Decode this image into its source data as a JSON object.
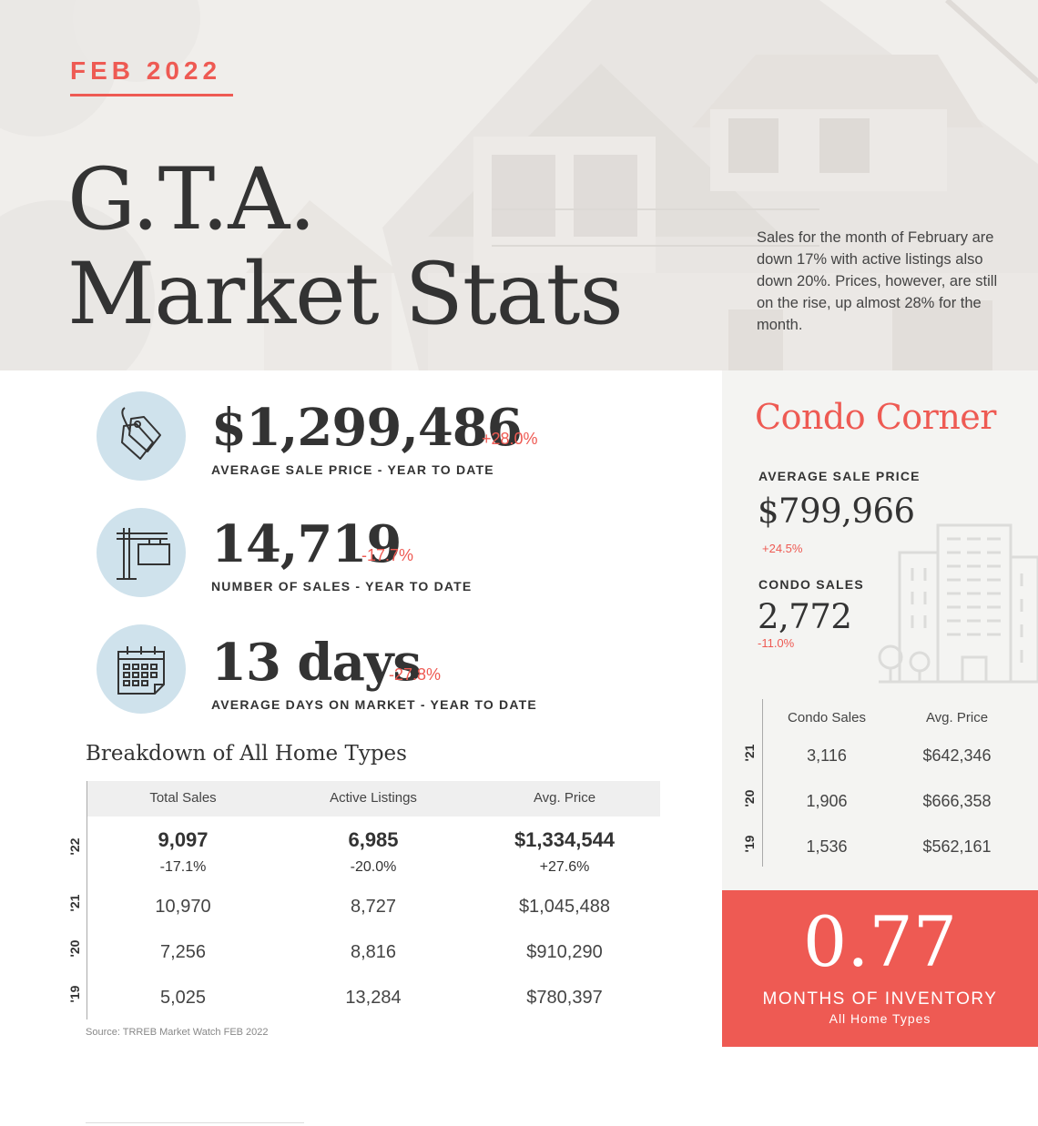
{
  "header": {
    "date": "FEB 2022",
    "title_line1": "G.T.A.",
    "title_line2": "Market Stats",
    "intro": "Sales for the month of February are down 17% with active listings also down 20%.  Prices, however, are still on the rise, up almost 28% for the month."
  },
  "stats": [
    {
      "icon": "price-tag-icon",
      "value": "$1,299,486",
      "change": "+28.0%",
      "label": "AVERAGE SALE PRICE - YEAR TO DATE"
    },
    {
      "icon": "for-sale-sign-icon",
      "value": "14,719",
      "change": "-17.7%",
      "label": "NUMBER OF SALES - YEAR TO DATE"
    },
    {
      "icon": "calendar-icon",
      "value": "13 days",
      "change": "-27.8%",
      "label": "AVERAGE DAYS ON MARKET - YEAR TO DATE"
    }
  ],
  "breakdown": {
    "title": "Breakdown of All Home Types",
    "columns": [
      "Total Sales",
      "Active Listings",
      "Avg. Price"
    ],
    "rows": [
      {
        "year": "'22",
        "total_sales": "9,097",
        "total_sales_change": "-17.1%",
        "active_listings": "6,985",
        "active_listings_change": "-20.0%",
        "avg_price": "$1,334,544",
        "avg_price_change": "+27.6%"
      },
      {
        "year": "'21",
        "total_sales": "10,970",
        "active_listings": "8,727",
        "avg_price": "$1,045,488"
      },
      {
        "year": "'20",
        "total_sales": "7,256",
        "active_listings": "8,816",
        "avg_price": "$910,290"
      },
      {
        "year": "'19",
        "total_sales": "5,025",
        "active_listings": "13,284",
        "avg_price": "$780,397"
      }
    ],
    "source": "Source: TRREB Market Watch FEB 2022"
  },
  "condo": {
    "title": "Condo Corner",
    "avg_price_label": "AVERAGE SALE PRICE",
    "avg_price": "$799,966",
    "avg_price_change": "+24.5%",
    "sales_label": "CONDO SALES",
    "sales": "2,772",
    "sales_change": "-11.0%",
    "icon": "condo-building-icon",
    "columns": [
      "Condo Sales",
      "Avg. Price"
    ],
    "rows": [
      {
        "year": "'21",
        "sales": "3,116",
        "avg_price": "$642,346"
      },
      {
        "year": "'20",
        "sales": "1,906",
        "avg_price": "$666,358"
      },
      {
        "year": "'19",
        "sales": "1,536",
        "avg_price": "$562,161"
      }
    ]
  },
  "inventory": {
    "value": "0.77",
    "label": "MONTHS OF INVENTORY",
    "sublabel": "All Home Types"
  },
  "colors": {
    "accent": "#ee5a53",
    "icon_circle": "#cfe2ec",
    "condo_panel": "#f4f4f2",
    "text": "#333333"
  }
}
